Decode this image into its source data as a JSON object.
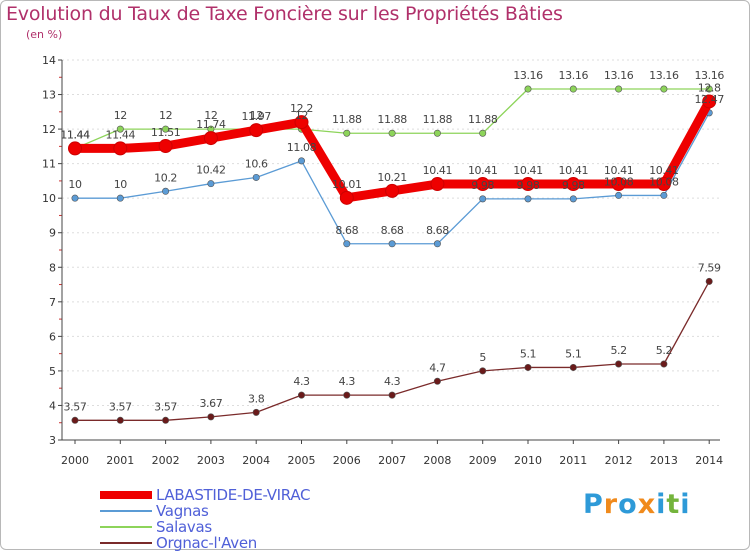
{
  "title": "Evolution du Taux de Taxe Foncière sur les Propriétés Bâties",
  "unit_label": "(en %)",
  "colors": {
    "title": "#b0306a",
    "legend_text": "#5060d8",
    "axis": "#444444",
    "gridline": "#dddddd"
  },
  "logo": {
    "letters": [
      "P",
      "r",
      "o",
      "x",
      "i",
      "t",
      "i"
    ],
    "colors": [
      "#2e9ad8",
      "#f08a1c",
      "#2e9ad8",
      "#f08a1c",
      "#2e9ad8",
      "#74b43c",
      "#2e9ad8"
    ]
  },
  "chart_data": {
    "type": "line",
    "title": "Evolution du Taux de Taxe Foncière sur les Propriétés Bâties",
    "ylabel": "(en %)",
    "xlabel": "",
    "x": [
      2000,
      2001,
      2002,
      2003,
      2004,
      2005,
      2006,
      2007,
      2008,
      2009,
      2010,
      2011,
      2012,
      2013,
      2014
    ],
    "ylim": [
      3,
      14
    ],
    "yticks": [
      3,
      4,
      5,
      6,
      7,
      8,
      9,
      10,
      11,
      12,
      13,
      14
    ],
    "grid": "horizontal dashed",
    "legend": "bottom-left",
    "series": [
      {
        "name": "LABASTIDE-DE-VIRAC",
        "color": "#ee0000",
        "marker_fill": "#ee0000",
        "width": 9,
        "values": [
          11.44,
          11.44,
          11.51,
          11.74,
          11.97,
          12.2,
          10.01,
          10.21,
          10.41,
          10.41,
          10.41,
          10.41,
          10.41,
          10.41,
          12.8
        ],
        "labels": [
          "11.44",
          "11.44",
          "11.51",
          "11.74",
          "11.97",
          "12.2",
          "10.01",
          "10.21",
          "10.41",
          "10.41",
          "10.41",
          "10.41",
          "10.41",
          "10.41",
          "12.8"
        ]
      },
      {
        "name": "Vagnas",
        "color": "#5b9bd5",
        "marker_fill": "#5b9bd5",
        "width": 1.3,
        "values": [
          10,
          10,
          10.2,
          10.42,
          10.6,
          11.08,
          8.68,
          8.68,
          8.68,
          9.98,
          9.98,
          9.98,
          10.08,
          10.08,
          12.47
        ],
        "labels": [
          "10",
          "10",
          "10.2",
          "10.42",
          "10.6",
          "11.08",
          "8.68",
          "8.68",
          "8.68",
          "9.98",
          "9.98",
          "9.98",
          "10.08",
          "10.08",
          "12.47"
        ]
      },
      {
        "name": "Salavas",
        "color": "#8dd45a",
        "marker_fill": "#8dd45a",
        "width": 1.3,
        "values": [
          11.44,
          12,
          12,
          12,
          12,
          12,
          11.88,
          11.88,
          11.88,
          11.88,
          13.16,
          13.16,
          13.16,
          13.16,
          13.16
        ],
        "labels": [
          "11.44",
          "12",
          "12",
          "12",
          "12",
          "12",
          "11.88",
          "11.88",
          "11.88",
          "11.88",
          "13.16",
          "13.16",
          "13.16",
          "13.16",
          "13.16"
        ]
      },
      {
        "name": "Orgnac-l'Aven",
        "color": "#7a2a2a",
        "marker_fill": "#6a1a1a",
        "width": 1.3,
        "values": [
          3.57,
          3.57,
          3.57,
          3.67,
          3.8,
          4.3,
          4.3,
          4.3,
          4.7,
          5,
          5.1,
          5.1,
          5.2,
          5.2,
          7.59
        ],
        "labels": [
          "3.57",
          "3.57",
          "3.57",
          "3.67",
          "3.8",
          "4.3",
          "4.3",
          "4.3",
          "4.7",
          "5",
          "5.1",
          "5.1",
          "5.2",
          "5.2",
          "7.59"
        ]
      }
    ]
  }
}
